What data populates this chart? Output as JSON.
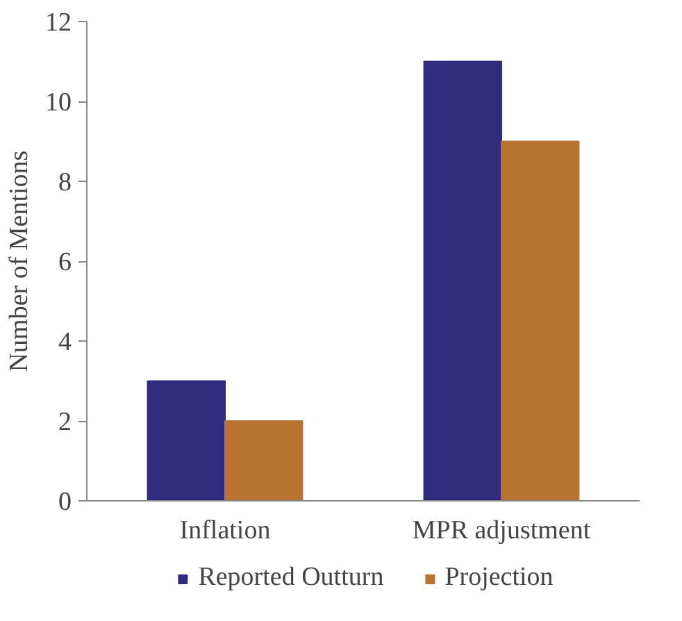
{
  "chart_data": {
    "type": "bar",
    "ylabel": "Number of Mentions",
    "categories": [
      "Inflation",
      "MPR adjustment"
    ],
    "series": [
      {
        "name": "Reported Outturn",
        "color": "#312b7d",
        "values": [
          3,
          11
        ]
      },
      {
        "name": "Projection",
        "color": "#b87333",
        "values": [
          2,
          9
        ]
      }
    ],
    "ylim": [
      0,
      12
    ],
    "yticks": [
      0,
      2,
      4,
      6,
      8,
      10,
      12
    ],
    "grid": false,
    "legend": "bottom"
  }
}
